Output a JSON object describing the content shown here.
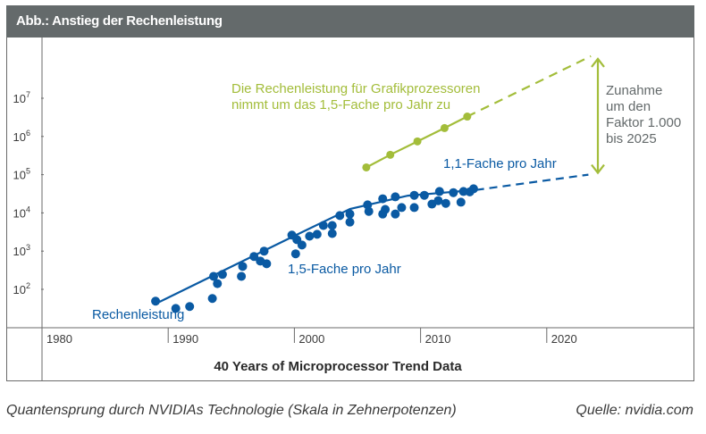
{
  "header": {
    "title": "Abb.: Anstieg der Rechenleistung"
  },
  "chart_data": {
    "type": "scatter",
    "title": "Abb.: Anstieg der Rechenleistung",
    "xlabel": "40 Years of Microprocessor Trend Data",
    "ylabel": "",
    "y_scale": "log10",
    "xlim": [
      1980,
      2030
    ],
    "ylim_log10": [
      1,
      8
    ],
    "x_ticks": [
      "1980",
      "1990",
      "2000",
      "2010",
      "2020"
    ],
    "x_tick_values": [
      1980,
      1990,
      2000,
      2010,
      2020
    ],
    "y_ticks": [
      {
        "base": "10",
        "exp": "2",
        "log": 2
      },
      {
        "base": "10",
        "exp": "3",
        "log": 3
      },
      {
        "base": "10",
        "exp": "4",
        "log": 4
      },
      {
        "base": "10",
        "exp": "5",
        "log": 5
      },
      {
        "base": "10",
        "exp": "6",
        "log": 6
      },
      {
        "base": "10",
        "exp": "7",
        "log": 7
      }
    ],
    "colors": {
      "cpu": "#0a5aa3",
      "gpu": "#a3bd3a",
      "annotation": "#646a6b",
      "axis": "#6a6a6a"
    },
    "series": [
      {
        "name": "Rechenleistung",
        "label": "Rechenleistung",
        "color": "#0a5aa3",
        "points_log10": [
          [
            1989.0,
            1.69
          ],
          [
            1990.6,
            1.5
          ],
          [
            1991.7,
            1.55
          ],
          [
            1993.5,
            1.76
          ],
          [
            1993.6,
            2.34
          ],
          [
            1993.9,
            2.15
          ],
          [
            1994.3,
            2.39
          ],
          [
            1995.8,
            2.34
          ],
          [
            1995.9,
            2.6
          ],
          [
            1996.8,
            2.86
          ],
          [
            1997.3,
            2.74
          ],
          [
            1997.6,
            3.0
          ],
          [
            1997.8,
            2.67
          ],
          [
            1999.8,
            3.42
          ],
          [
            2000.2,
            3.3
          ],
          [
            2000.6,
            3.16
          ],
          [
            2000.1,
            2.93
          ],
          [
            2001.2,
            3.39
          ],
          [
            2001.8,
            3.44
          ],
          [
            2002.3,
            3.67
          ],
          [
            2003.0,
            3.67
          ],
          [
            2003.0,
            3.46
          ],
          [
            2003.6,
            3.93
          ],
          [
            2004.4,
            3.97
          ],
          [
            2004.4,
            3.76
          ],
          [
            2005.8,
            4.21
          ],
          [
            2005.9,
            4.04
          ],
          [
            2007.0,
            4.37
          ],
          [
            2007.0,
            3.97
          ],
          [
            2007.2,
            4.09
          ],
          [
            2008.0,
            4.42
          ],
          [
            2008.0,
            3.97
          ],
          [
            2008.5,
            4.14
          ],
          [
            2009.5,
            4.46
          ],
          [
            2009.5,
            4.14
          ],
          [
            2010.3,
            4.46
          ],
          [
            2010.9,
            4.23
          ],
          [
            2011.4,
            4.32
          ],
          [
            2011.5,
            4.56
          ],
          [
            2012.0,
            4.25
          ],
          [
            2012.6,
            4.53
          ],
          [
            2013.2,
            4.28
          ],
          [
            2013.4,
            4.56
          ],
          [
            2013.9,
            4.55
          ],
          [
            2014.2,
            4.63
          ]
        ],
        "trend_log10": [
          [
            1989.3,
            1.67
          ],
          [
            2000.0,
            3.4
          ],
          [
            2004.4,
            4.1
          ],
          [
            2009.0,
            4.45
          ],
          [
            2014.4,
            4.6
          ]
        ],
        "projection_log10": [
          [
            2014.4,
            4.6
          ],
          [
            2023.3,
            5.0
          ]
        ],
        "rate_label": "1,5-Fache pro Jahr",
        "rate_label_2": "1,1-Fache pro Jahr"
      },
      {
        "name": "Grafikprozessoren",
        "label": "Die Rechenleistung für Grafikprozessoren nimmt um das 1,5-Fache pro Jahr zu",
        "color": "#a3bd3a",
        "points_log10": [
          [
            2005.7,
            5.19
          ],
          [
            2007.6,
            5.52
          ],
          [
            2009.75,
            5.87
          ],
          [
            2011.9,
            6.22
          ],
          [
            2013.7,
            6.52
          ]
        ],
        "projection_log10": [
          [
            2013.7,
            6.52
          ],
          [
            2023.5,
            8.1
          ]
        ]
      }
    ],
    "annotations": {
      "gpu_line1": "Die Rechenleistung für Grafikprozessoren",
      "gpu_line2": "nimmt um das 1,5-Fache pro Jahr zu",
      "cpu_rate_early": "1,5-Fache pro Jahr",
      "cpu_rate_late": "1,1-Fache pro Jahr",
      "cpu_series_label": "Rechenleistung",
      "gap_lines": [
        "Zunahme",
        "um den",
        "Faktor 1.000",
        "bis 2025"
      ]
    },
    "grid": false,
    "legend": "none"
  },
  "footer": {
    "caption": "Quantensprung durch NVIDIAs Technologie (Skala in Zehnerpotenzen)",
    "source": "Quelle: nvidia.com"
  }
}
